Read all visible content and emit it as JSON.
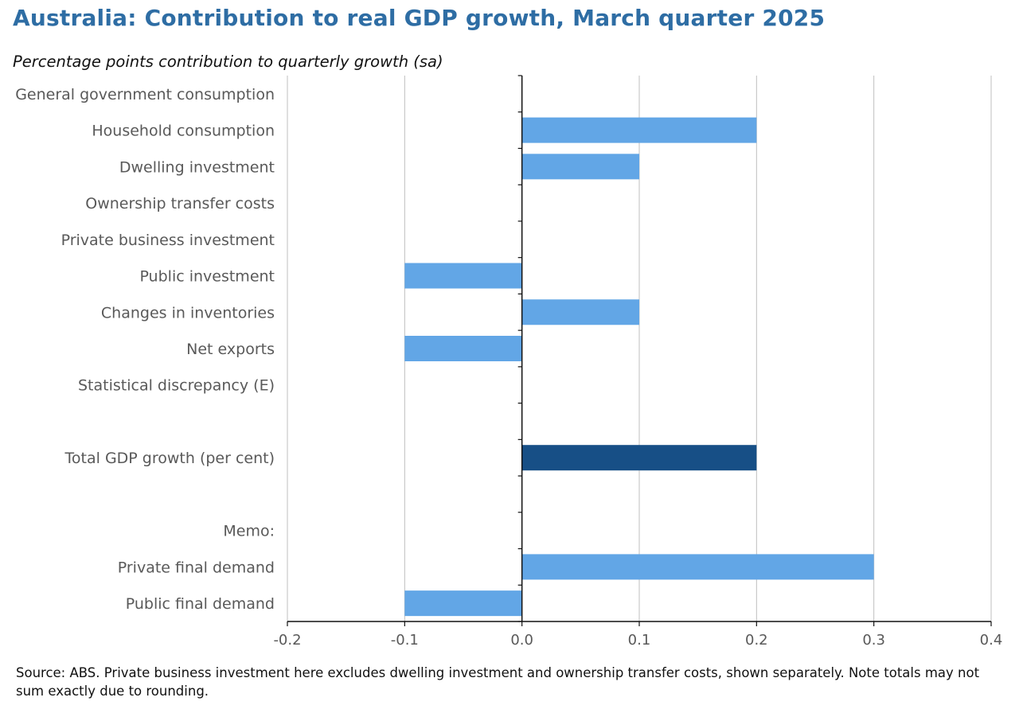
{
  "title": "Australia: Contribution to real GDP growth, March quarter 2025",
  "subtitle": "Percentage points contribution to quarterly growth (sa)",
  "source_note": "Source: ABS. Private business investment here excludes dwelling investment and ownership transfer costs, shown separately.  Note totals may not sum exactly due to rounding.",
  "colors": {
    "title": "#2e6da4",
    "bar": "#62a6e6",
    "total_bar": "#174f86",
    "grid": "#bfbfbf",
    "axis": "#111111",
    "label": "#595959"
  },
  "chart_data": {
    "type": "bar",
    "orientation": "horizontal",
    "xlim": [
      -0.2,
      0.4
    ],
    "x_ticks": [
      -0.2,
      -0.1,
      0.0,
      0.1,
      0.2,
      0.3,
      0.4
    ],
    "x_tick_labels": [
      "-0.2",
      "-0.1",
      "0.0",
      "0.1",
      "0.2",
      "0.3",
      "0.4"
    ],
    "grid": true,
    "categories": [
      "General government consumption",
      "Household consumption",
      "Dwelling investment",
      "Ownership transfer costs",
      "Private business investment",
      "Public investment",
      "Changes in inventories",
      "Net exports",
      "Statistical discrepancy (E)",
      "",
      "Total GDP growth (per cent)",
      "",
      "Memo:",
      "Private final demand",
      "Public final demand"
    ],
    "values": [
      0.0,
      0.2,
      0.1,
      0.0,
      0.0,
      -0.1,
      0.1,
      -0.1,
      0.0,
      null,
      0.2,
      null,
      null,
      0.3,
      -0.1
    ],
    "highlight": [
      false,
      false,
      false,
      false,
      false,
      false,
      false,
      false,
      false,
      false,
      true,
      false,
      false,
      false,
      false
    ]
  }
}
